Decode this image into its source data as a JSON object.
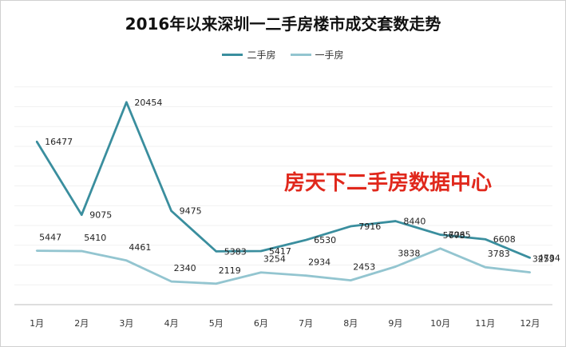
{
  "chart_data": {
    "type": "line",
    "title": "2016年以来深圳一二手房楼市成交套数走势",
    "categories": [
      "1月",
      "2月",
      "3月",
      "4月",
      "5月",
      "6月",
      "7月",
      "8月",
      "9月",
      "10月",
      "11月",
      "12月"
    ],
    "series": [
      {
        "name": "二手房",
        "color": "#3a8e9e",
        "values": [
          16477,
          9075,
          20454,
          9475,
          5383,
          5417,
          6530,
          7916,
          8440,
          7065,
          6608,
          4734
        ]
      },
      {
        "name": "一手房",
        "color": "#93c5d0",
        "values": [
          5447,
          5410,
          4461,
          2340,
          2119,
          3254,
          2934,
          2453,
          3838,
          5673,
          3783,
          3259
        ]
      }
    ],
    "ylim": [
      0,
      24000
    ],
    "grid": true,
    "legend": "top-center",
    "xlabel": "",
    "ylabel": ""
  },
  "watermark": "房天下二手房数据中心"
}
